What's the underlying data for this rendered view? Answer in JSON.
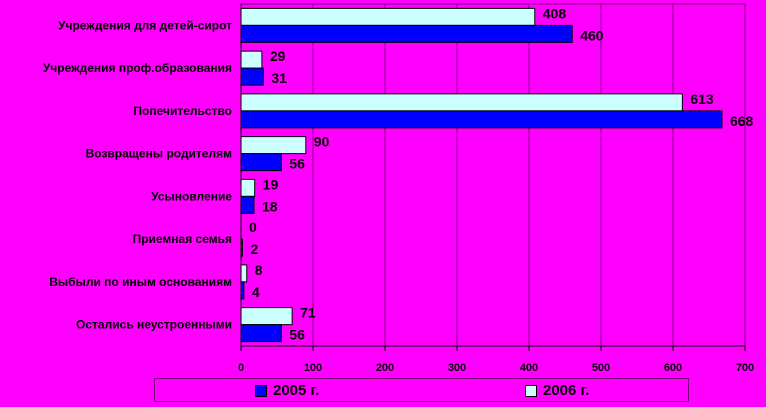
{
  "chart_data": {
    "type": "bar",
    "orientation": "horizontal",
    "categories": [
      "Учреждения для детей-сирот",
      "Учреждения проф.образования",
      "Попечительство",
      "Возвращены родителям",
      "Усыновление",
      "Приемная семья",
      "Выбыли по иным основаниям",
      "Остались неустроенными"
    ],
    "series": [
      {
        "name": "2005 г.",
        "color": "#0000ff",
        "values": [
          460,
          31,
          668,
          56,
          18,
          2,
          4,
          56
        ]
      },
      {
        "name": "2006 г.",
        "color": "#ccffff",
        "values": [
          408,
          29,
          613,
          90,
          19,
          0,
          8,
          71
        ]
      }
    ],
    "xlim": [
      0,
      700
    ],
    "xticks": [
      "0",
      "100",
      "200",
      "300",
      "400",
      "500",
      "600",
      "700"
    ],
    "grid": true,
    "legend_position": "bottom",
    "background": "#ff00ff"
  }
}
